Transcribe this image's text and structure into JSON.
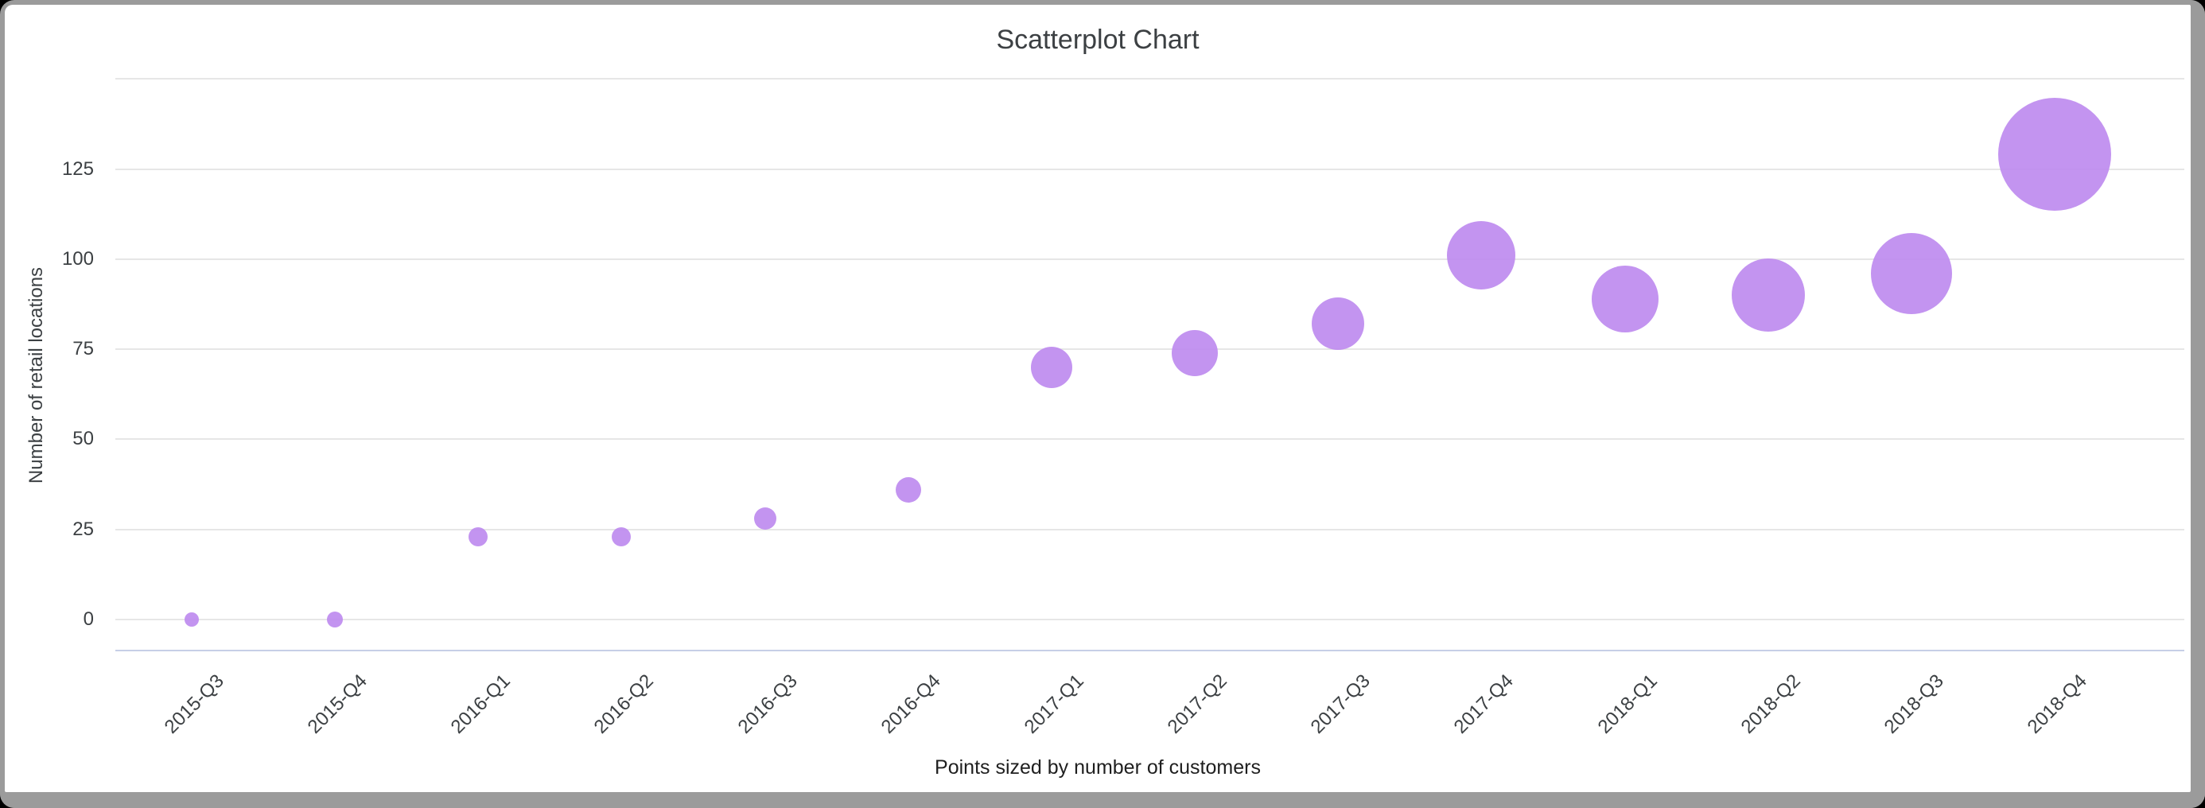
{
  "frame": {
    "background": "#000000",
    "border_color": "#9b9b9b",
    "canvas_color": "#ffffff"
  },
  "chart_data": {
    "type": "scatter",
    "title": "Scatterplot Chart",
    "y_axis_label": "Number of retail locations",
    "x_axis_note": "Points sized by number of customers",
    "categories": [
      "2015-Q3",
      "2015-Q4",
      "2016-Q1",
      "2016-Q2",
      "2016-Q3",
      "2016-Q4",
      "2017-Q1",
      "2017-Q2",
      "2017-Q3",
      "2017-Q4",
      "2018-Q1",
      "2018-Q2",
      "2018-Q3",
      "2018-Q4"
    ],
    "series": [
      {
        "name": "Number of retail locations",
        "values": [
          0,
          0,
          23,
          23,
          28,
          36,
          70,
          74,
          82,
          101,
          89,
          90,
          96,
          129
        ],
        "point_radius_px": [
          9,
          10,
          12,
          12,
          14,
          16,
          26,
          29,
          33,
          43,
          42,
          46,
          51,
          71
        ]
      }
    ],
    "y_ticks": [
      0,
      25,
      50,
      75,
      100,
      125
    ],
    "ylim": [
      0,
      150
    ],
    "grid": true,
    "legend_position": "none",
    "point_color": "#bc88ee",
    "gridline_color": "#e6e6e6",
    "axis_line_color": "#c7cfe6",
    "text_color": "#3c4043"
  }
}
